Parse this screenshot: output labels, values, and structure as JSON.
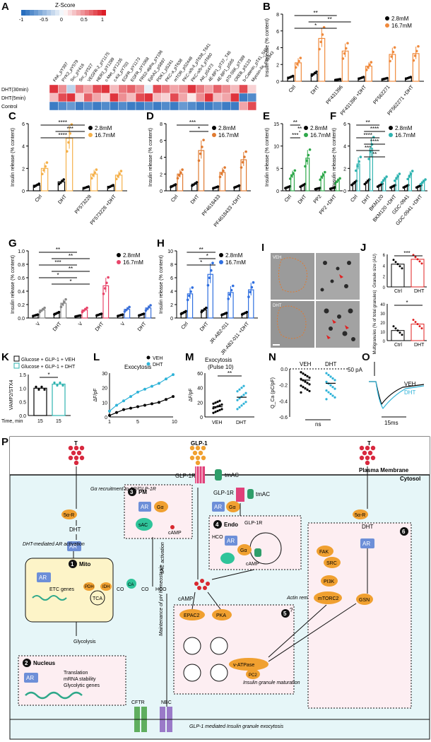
{
  "panels": {
    "A": {
      "label": "A",
      "legend_title": "Z-Score",
      "legend_ticks": [
        "-1",
        "-0.5",
        "0",
        "0.5",
        "1"
      ],
      "rows": [
        "DHT(30min)",
        "DHT(5min)",
        "Control"
      ],
      "cols": [
        "FAK_pY397",
        "PYK2_pY579",
        "Src_pY416",
        "Src_pY527",
        "VEGFR-2_pY1175",
        "HER3_pY1289",
        "c-Met_pY1235",
        "c-Kit_pY703",
        "EGFR_pY1173",
        "EGFR_pY1068",
        "FRS2-alpha_pY196",
        "EphA2_pS897",
        "PDK1_pS241",
        "PKC-a_pT638",
        "mTOR_pS2448",
        "PKC-a/b-ll_pT638_T641",
        "PKC-a/b-ll_pT660",
        "Akt_pS473",
        "4E-BP1_pT37_T46",
        "4E-BP1_pS65",
        "p70-S6K_pT389",
        "CREB_pS133",
        "b-Catenin_pT41_S45",
        "Myosin-lla_pS1943"
      ],
      "values": [
        [
          0.9,
          0.5,
          -0.3,
          0.6,
          0.4,
          0.8,
          0.9,
          0.3,
          0.6,
          0.7,
          0.5,
          -0.1,
          0.8,
          0.6,
          0.4,
          0.5,
          0.9,
          0.6,
          0.4,
          0.7,
          0.5,
          0.3,
          0.8,
          0.2
        ],
        [
          0.3,
          0.8,
          0.9,
          0.2,
          0.7,
          0.4,
          0.2,
          0.9,
          0.5,
          0.3,
          0.8,
          0.9,
          0.3,
          0.2,
          0.8,
          0.4,
          0.1,
          0.5,
          0.9,
          0.3,
          0.4,
          0.9,
          -0.9,
          -0.8
        ],
        [
          -0.9,
          -0.8,
          -0.7,
          -0.9,
          -0.8,
          -0.9,
          -0.8,
          -0.9,
          -0.8,
          -0.9,
          -0.9,
          -0.8,
          -0.9,
          -0.8,
          -0.9,
          -0.7,
          -0.8,
          -0.9,
          -0.9,
          -0.8,
          -0.9,
          -0.9,
          0.4,
          0.8
        ]
      ]
    },
    "B": {
      "label": "B",
      "ylabel": "Insulin release (% content)",
      "ylim": [
        0,
        8
      ],
      "yticks": [
        "0",
        "2",
        "4",
        "6",
        "8"
      ],
      "categories": [
        "Ctrl",
        "DHT",
        "PF431396",
        "PF431396 +DHT",
        "PF562271",
        "PF562271 +DHT"
      ],
      "series": [
        {
          "name": "2.8mM",
          "values": [
            0.5,
            0.9,
            0.2,
            0.4,
            0.3,
            0.4
          ]
        },
        {
          "name": "16.7mM",
          "values": [
            2.2,
            5.1,
            3.6,
            1.8,
            3.2,
            3.3
          ]
        }
      ],
      "colors": [
        "#000000",
        "#f08a3c"
      ],
      "sig": [
        "**",
        "**",
        "*"
      ]
    },
    "C": {
      "label": "C",
      "ylabel": "Insulin release (% content)",
      "ylim": [
        0,
        6
      ],
      "yticks": [
        "0",
        "2",
        "4",
        "6"
      ],
      "categories": [
        "Ctrl",
        "DHT",
        "PF573228",
        "PF573228 +DHT"
      ],
      "series": [
        {
          "name": "2.8mM",
          "values": [
            0.5,
            0.8,
            0.3,
            0.4
          ]
        },
        {
          "name": "16.7mM",
          "values": [
            2.0,
            4.7,
            1.5,
            1.4
          ]
        }
      ],
      "colors": [
        "#000000",
        "#f5b14a"
      ],
      "sig": [
        "****",
        "***",
        "****"
      ]
    },
    "D": {
      "label": "D",
      "ylabel": "Insulin release (% content)",
      "ylim": [
        0,
        8
      ],
      "yticks": [
        "0",
        "2",
        "4",
        "6",
        "8"
      ],
      "categories": [
        "Ctrl",
        "DHT",
        "PF4618433",
        "PF4618433 +DHT"
      ],
      "series": [
        {
          "name": "2.8mM",
          "values": [
            0.6,
            0.8,
            0.4,
            0.5
          ]
        },
        {
          "name": "16.7mM",
          "values": [
            2.0,
            4.8,
            2.2,
            3.7
          ]
        }
      ],
      "colors": [
        "#000000",
        "#e07a30"
      ],
      "sig": [
        "***",
        "*"
      ]
    },
    "E": {
      "label": "E",
      "ylabel": "Insulin release (% content)",
      "ylim": [
        0,
        15
      ],
      "yticks": [
        "0",
        "5",
        "10",
        "15"
      ],
      "categories": [
        "Ctrl",
        "DHT",
        "PP2",
        "PP2 +DHT"
      ],
      "series": [
        {
          "name": "2.8mM",
          "values": [
            0.8,
            1.2,
            0.5,
            0.6
          ]
        },
        {
          "name": "16.7mM",
          "values": [
            3.6,
            7.3,
            3.3,
            2.2
          ]
        }
      ],
      "colors": [
        "#000000",
        "#2ea84a"
      ],
      "sig": [
        "**",
        "**",
        "***"
      ]
    },
    "F": {
      "label": "F",
      "ylabel": "Insulin release (% content)",
      "ylim": [
        0,
        6
      ],
      "yticks": [
        "0",
        "2",
        "4",
        "6"
      ],
      "categories": [
        "Ctrl",
        "DHT",
        "BKM120",
        "BKM120 +DHT",
        "GDC-0941",
        "GDC-0941 +DHT"
      ],
      "series": [
        {
          "name": "2.8mM",
          "values": [
            0.7,
            0.8,
            0.5,
            0.4,
            0.4,
            0.4
          ]
        },
        {
          "name": "16.7mM",
          "values": [
            2.4,
            3.8,
            1.0,
            1.2,
            1.4,
            0.8
          ]
        }
      ],
      "colors": [
        "#000000",
        "#2fb3b0"
      ],
      "sig": [
        "**",
        "****",
        "****",
        "****",
        "***",
        "**"
      ]
    },
    "G": {
      "label": "G",
      "ylabel": "Insulin release (% content)",
      "ylim": [
        0,
        1.0
      ],
      "yticks": [
        "0.0",
        "0.2",
        "0.4",
        "0.6",
        "0.8",
        "1.0"
      ],
      "groups": [
        "Controls",
        "βRA^HET",
        "βRI^KO"
      ],
      "categories": [
        "V",
        "DHT",
        "V",
        "DHT",
        "V",
        "DHT"
      ],
      "series": [
        {
          "name": "2.8mM",
          "values": [
            0.04,
            0.07,
            0.03,
            0.05,
            0.04,
            0.05
          ]
        },
        {
          "name": "16.7mM",
          "values": [
            0.12,
            0.22,
            0.12,
            0.48,
            0.13,
            0.15
          ]
        }
      ],
      "colors": [
        "#888888",
        "#e8456a",
        "#3a6fd8"
      ],
      "sig": [
        "**",
        "**",
        "***",
        "**",
        "*",
        "*"
      ]
    },
    "H": {
      "label": "H",
      "ylabel": "Insulin release (% content)",
      "ylim": [
        0,
        10
      ],
      "yticks": [
        "0",
        "2",
        "4",
        "6",
        "8",
        "10"
      ],
      "categories": [
        "Ctrl",
        "DHT",
        "JR-AB2-011",
        "JR-AB2-011 +DHT"
      ],
      "series": [
        {
          "name": "2.8mM",
          "values": [
            0.8,
            1.2,
            0.6,
            0.7
          ]
        },
        {
          "name": "16.7mM",
          "values": [
            3.6,
            6.5,
            3.8,
            4.2
          ]
        }
      ],
      "colors": [
        "#000000",
        "#2f6fe0"
      ],
      "sig": [
        "**",
        "*",
        "*"
      ]
    },
    "I": {
      "label": "I",
      "tags": [
        "VEH",
        "DHT"
      ]
    },
    "J": {
      "label": "J",
      "top": {
        "ylabel": "Granule size (AU)",
        "yticks": [
          "0",
          "2",
          "4",
          "6"
        ],
        "categories": [
          "Ctrl",
          "DHT"
        ],
        "values": [
          4.2,
          5.1
        ],
        "sig": "***"
      },
      "bottom": {
        "ylabel": "Multigranules (% of total granules)",
        "yticks": [
          "0",
          "10",
          "20",
          "30",
          "40"
        ],
        "categories": [
          "Ctrl",
          "DHT"
        ],
        "values": [
          11,
          18
        ],
        "sig": "*"
      }
    },
    "K": {
      "label": "K",
      "legend": [
        "Glucose + GLP-1 + VEH",
        "Glucose + GLP-1 + DHT"
      ],
      "ylabel": "VAMP2/STX4",
      "yticks": [
        "0.0",
        "0.5",
        "1.0",
        "1.5"
      ],
      "xrow_label": "Time, min",
      "x": [
        "15",
        "15"
      ],
      "values": [
        1.0,
        1.15
      ],
      "sig": "*"
    },
    "L": {
      "label": "L",
      "title": "Exocytosis",
      "legend": [
        "VEH",
        "DHT"
      ],
      "ylabel": "ΔF/pF",
      "yticks": [
        "0",
        "10",
        "20",
        "30"
      ],
      "xticks": [
        "1",
        "5",
        "10"
      ],
      "series": [
        {
          "name": "VEH",
          "values": [
            1,
            3,
            5,
            6,
            7,
            8,
            9,
            10,
            12,
            14
          ]
        },
        {
          "name": "DHT",
          "values": [
            4,
            8,
            11,
            14,
            17,
            19,
            21,
            23,
            26,
            29
          ]
        }
      ]
    },
    "M": {
      "label": "M",
      "title": "Exocytosis",
      "subtitle": "(Pulse 10)",
      "ylabel": "ΔF/pF",
      "yticks": [
        "0",
        "20",
        "40",
        "60"
      ],
      "categories": [
        "VEH",
        "DHT"
      ],
      "values": [
        14,
        27
      ],
      "sig": "**"
    },
    "N": {
      "label": "N",
      "categories": [
        "VEH",
        "DHT"
      ],
      "ylabel": "Q_Ca (pC/pF)",
      "yticks": [
        "0.0",
        "-0.2",
        "-0.4",
        "-0.6"
      ],
      "values": [
        -0.14,
        -0.18
      ],
      "sig": "ns"
    },
    "O": {
      "label": "O",
      "scale": "50 pA",
      "time": "15ms",
      "legend": [
        "VEH",
        "DHT"
      ]
    }
  },
  "diagram": {
    "label": "P",
    "pm_label": "Plasma Membrane",
    "cytosol_label": "Cytosol",
    "t_label": "T",
    "glp1": "GLP-1",
    "glp1r": "GLP-1R",
    "tmac": "tmAC",
    "pm_box": "PM",
    "pm_num": "3",
    "galpha_recruit": "Gα recruitment to AR/GLP-1R",
    "ar": "AR",
    "ga": "Gα",
    "sac": "sAC",
    "camp": "cAMP",
    "fiveared": "5α-R",
    "dht": "DHT",
    "dht_ar": "DHT-mediated AR activation",
    "mito": "Mito",
    "mito_num": "1",
    "etc": "ETC genes",
    "pdh": "PDH",
    "idh": "IDH",
    "tca": "TCA",
    "ca": "CA",
    "co2": "CO",
    "co2b": "CO",
    "hco3": "HCO",
    "sac_act": "sAC activation",
    "ph": "Maintenance of pH homeostasis",
    "glycolysis": "Glycolysis",
    "nucleus": "Nucleus",
    "nucleus_num": "2",
    "nucleus_text": [
      "Translation",
      "mRNA stability",
      "Glycolytic genes"
    ],
    "endo": "Endo",
    "endo_num": "4",
    "endo_glp1r": "GLP-1R",
    "hco3b": "HCO",
    "epac2": "EPAC2",
    "pka": "PKA",
    "vatp": "v-ATPase",
    "pc2": "PC2",
    "box5_num": "5",
    "insulin_maturation": "Insulin granule maturation",
    "actin": "Actin remodelling",
    "qmark": "?",
    "box6_num": "6",
    "fak": "FAK",
    "src": "SRC",
    "pi3k": "PI3K",
    "mtorc2": "mTORC2",
    "gsn": "GSN",
    "cftr": "CFTR",
    "nbc": "NBC",
    "exocytosis": "GLP-1 mediated Insulin granule exocytosis",
    "plus": "+"
  }
}
